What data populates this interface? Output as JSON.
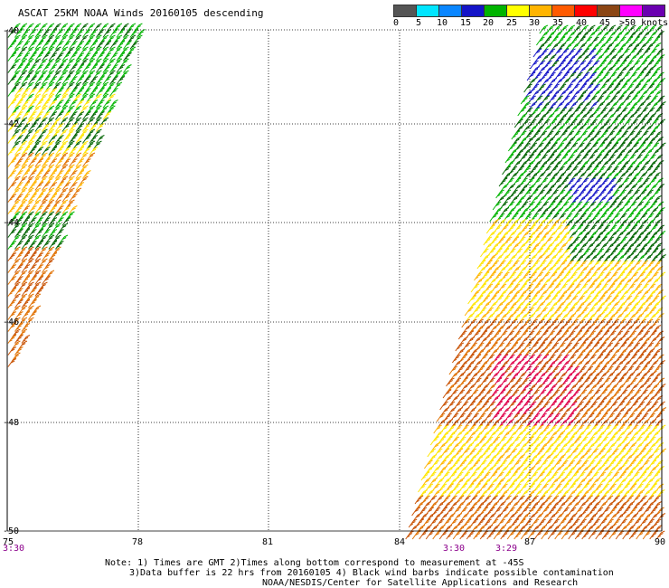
{
  "title": "ASCAT 25KM NOAA Winds 20160105 descending",
  "legend": {
    "swatches": [
      {
        "color": "#555555",
        "name": "0-5 knots"
      },
      {
        "color": "#00e5ff",
        "name": "5-10 knots"
      },
      {
        "color": "#0a86ff",
        "name": "10-15 knots"
      },
      {
        "color": "#1414c8",
        "name": "15-20 knots"
      },
      {
        "color": "#00b400",
        "name": "20-25 knots"
      },
      {
        "color": "#ffff00",
        "name": "25-30 knots"
      },
      {
        "color": "#ffb400",
        "name": "30-35 knots"
      },
      {
        "color": "#ff5a00",
        "name": "35-40 knots"
      },
      {
        "color": "#ff0000",
        "name": "40-45 knots"
      },
      {
        "color": "#8b4513",
        "name": "45-50 knots"
      },
      {
        "color": "#ff00ff",
        "name": "50+ knots"
      },
      {
        "color": "#6a00b0",
        "name": ">50 knots"
      }
    ],
    "labels": [
      "0",
      "5",
      "10",
      "15",
      "20",
      "25",
      "30",
      "35",
      "40",
      "45",
      ">50 knots"
    ]
  },
  "map": {
    "lon_range": [
      75,
      90
    ],
    "lat_range": [
      -40,
      -50
    ],
    "lon_ticks": [
      "75",
      "78",
      "81",
      "84",
      "87",
      "90"
    ],
    "lat_ticks": [
      "-40",
      "-42",
      "-44",
      "-46",
      "-48",
      "-50"
    ],
    "time_labels": [
      {
        "text": "3:30",
        "color": "#8b008b"
      },
      {
        "text": "3:30",
        "color": "#8b008b"
      },
      {
        "text": "3:29",
        "color": "#8b008b"
      }
    ],
    "barb_colors": {
      "green": "#00b400",
      "darkgreen": "#006400",
      "blue": "#1414c8",
      "yellow": "#ffe600",
      "gold": "#ffb400",
      "orange": "#e07000",
      "darkorange": "#c85000",
      "red": "#e0004a"
    }
  },
  "notes": [
    "Note: 1) Times are GMT 2)Times along bottom correspond to measurement at -45S",
    "3)Data buffer is 22 hrs from 20160105 4) Black wind barbs indicate possible contamination",
    "NOAA/NESDIS/Center for Satellite Applications and Research"
  ]
}
